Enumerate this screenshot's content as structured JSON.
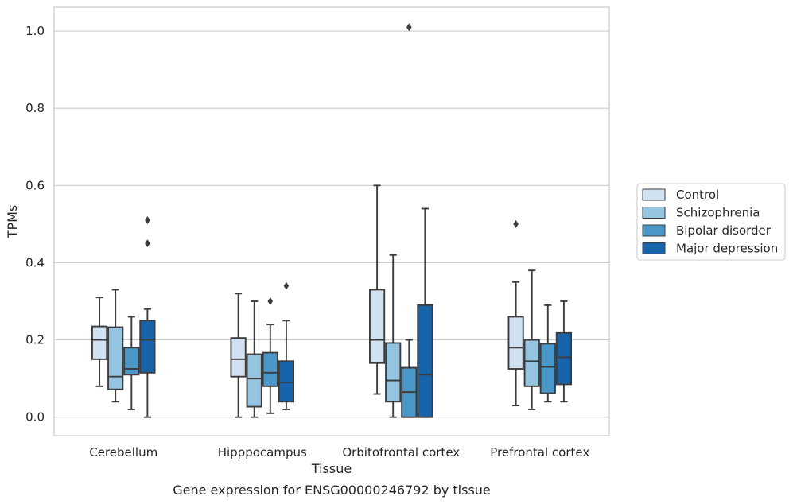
{
  "chart_data": {
    "type": "boxplot",
    "xlabel": "Tissue",
    "ylabel": "TPMs",
    "caption": "Gene expression for ENSG00000246792 by tissue",
    "ylim": [
      -0.048,
      1.062
    ],
    "yticks": [
      0.0,
      0.2,
      0.4,
      0.6,
      0.8,
      1.0
    ],
    "ytick_labels": [
      "0.0",
      "0.2",
      "0.4",
      "0.6",
      "0.8",
      "1.0"
    ],
    "grid": "horizontal",
    "legend_position": "right",
    "categories": [
      "Cerebellum",
      "Hipppocampus",
      "Orbitofrontal cortex",
      "Prefrontal cortex"
    ],
    "series": [
      {
        "name": "Control",
        "color": "#d0e1f2",
        "boxes": [
          {
            "whislo": 0.08,
            "q1": 0.15,
            "med": 0.2,
            "q3": 0.235,
            "whishi": 0.31,
            "fliers": []
          },
          {
            "whislo": 0.0,
            "q1": 0.105,
            "med": 0.15,
            "q3": 0.205,
            "whishi": 0.32,
            "fliers": []
          },
          {
            "whislo": 0.06,
            "q1": 0.14,
            "med": 0.2,
            "q3": 0.33,
            "whishi": 0.6,
            "fliers": []
          },
          {
            "whislo": 0.03,
            "q1": 0.125,
            "med": 0.18,
            "q3": 0.26,
            "whishi": 0.35,
            "fliers": [
              0.5
            ]
          }
        ]
      },
      {
        "name": "Schizophrenia",
        "color": "#94c4df",
        "boxes": [
          {
            "whislo": 0.04,
            "q1": 0.072,
            "med": 0.105,
            "q3": 0.233,
            "whishi": 0.33,
            "fliers": []
          },
          {
            "whislo": 0.0,
            "q1": 0.027,
            "med": 0.1,
            "q3": 0.163,
            "whishi": 0.3,
            "fliers": []
          },
          {
            "whislo": 0.0,
            "q1": 0.04,
            "med": 0.095,
            "q3": 0.192,
            "whishi": 0.42,
            "fliers": []
          },
          {
            "whislo": 0.02,
            "q1": 0.08,
            "med": 0.145,
            "q3": 0.2,
            "whishi": 0.38,
            "fliers": []
          }
        ]
      },
      {
        "name": "Bipolar disorder",
        "color": "#4a98c9",
        "boxes": [
          {
            "whislo": 0.02,
            "q1": 0.11,
            "med": 0.125,
            "q3": 0.18,
            "whishi": 0.26,
            "fliers": []
          },
          {
            "whislo": 0.01,
            "q1": 0.08,
            "med": 0.115,
            "q3": 0.167,
            "whishi": 0.24,
            "fliers": [
              0.3
            ]
          },
          {
            "whislo": 0.0,
            "q1": 0.0,
            "med": 0.065,
            "q3": 0.128,
            "whishi": 0.2,
            "fliers": [
              1.01
            ]
          },
          {
            "whislo": 0.04,
            "q1": 0.062,
            "med": 0.13,
            "q3": 0.19,
            "whishi": 0.29,
            "fliers": []
          }
        ]
      },
      {
        "name": "Major depression",
        "color": "#1764ab",
        "boxes": [
          {
            "whislo": 0.0,
            "q1": 0.115,
            "med": 0.2,
            "q3": 0.25,
            "whishi": 0.28,
            "fliers": [
              0.45,
              0.51
            ]
          },
          {
            "whislo": 0.02,
            "q1": 0.04,
            "med": 0.09,
            "q3": 0.145,
            "whishi": 0.25,
            "fliers": [
              0.34
            ]
          },
          {
            "whislo": 0.0,
            "q1": 0.0,
            "med": 0.11,
            "q3": 0.29,
            "whishi": 0.54,
            "fliers": []
          },
          {
            "whislo": 0.04,
            "q1": 0.085,
            "med": 0.155,
            "q3": 0.218,
            "whishi": 0.3,
            "fliers": []
          }
        ]
      }
    ]
  }
}
